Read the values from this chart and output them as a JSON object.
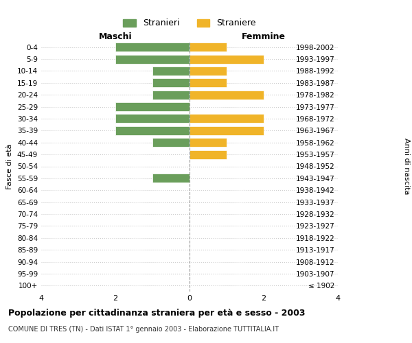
{
  "age_groups": [
    "0-4",
    "5-9",
    "10-14",
    "15-19",
    "20-24",
    "25-29",
    "30-34",
    "35-39",
    "40-44",
    "45-49",
    "50-54",
    "55-59",
    "60-64",
    "65-69",
    "70-74",
    "75-79",
    "80-84",
    "85-89",
    "90-94",
    "95-99",
    "100+"
  ],
  "birth_years": [
    "1998-2002",
    "1993-1997",
    "1988-1992",
    "1983-1987",
    "1978-1982",
    "1973-1977",
    "1968-1972",
    "1963-1967",
    "1958-1962",
    "1953-1957",
    "1948-1952",
    "1943-1947",
    "1938-1942",
    "1933-1937",
    "1928-1932",
    "1923-1927",
    "1918-1922",
    "1913-1917",
    "1908-1912",
    "1903-1907",
    "≤ 1902"
  ],
  "maschi": [
    2,
    2,
    1,
    1,
    1,
    2,
    2,
    2,
    1,
    0,
    0,
    1,
    0,
    0,
    0,
    0,
    0,
    0,
    0,
    0,
    0
  ],
  "femmine": [
    1,
    2,
    1,
    1,
    2,
    0,
    2,
    2,
    1,
    1,
    0,
    0,
    0,
    0,
    0,
    0,
    0,
    0,
    0,
    0,
    0
  ],
  "color_maschi": "#6a9e5b",
  "color_femmine": "#f0b429",
  "title": "Popolazione per cittadinanza straniera per età e sesso - 2003",
  "subtitle": "COMUNE DI TRES (TN) - Dati ISTAT 1° gennaio 2003 - Elaborazione TUTTITALIA.IT",
  "legend_maschi": "Stranieri",
  "legend_femmine": "Straniere",
  "xlabel_left": "Maschi",
  "xlabel_right": "Femmine",
  "ylabel_left": "Fasce di età",
  "ylabel_right": "Anni di nascita",
  "xlim": 4,
  "background_color": "#ffffff",
  "grid_color": "#cccccc"
}
